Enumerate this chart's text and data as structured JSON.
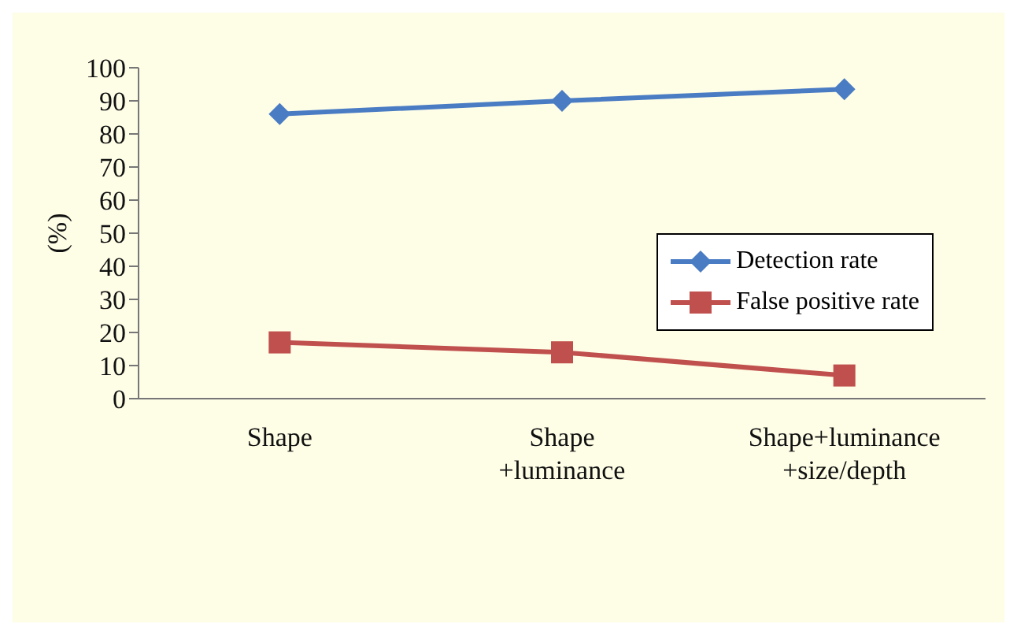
{
  "chart_data": {
    "type": "line",
    "ylabel": "(%)",
    "categories": [
      "Shape",
      "Shape\n+luminance",
      "Shape+luminance\n+size/depth"
    ],
    "series": [
      {
        "name": "Detection rate",
        "color": "#4a7cc4",
        "marker": "diamond",
        "values": [
          86,
          90,
          93.5
        ]
      },
      {
        "name": "False positive rate",
        "color": "#c0504d",
        "marker": "square",
        "values": [
          17,
          14,
          7
        ]
      }
    ],
    "ylim": [
      0,
      100
    ],
    "yticks": [
      0,
      10,
      20,
      30,
      40,
      50,
      60,
      70,
      80,
      90,
      100
    ],
    "grid": false,
    "legend": "right"
  }
}
